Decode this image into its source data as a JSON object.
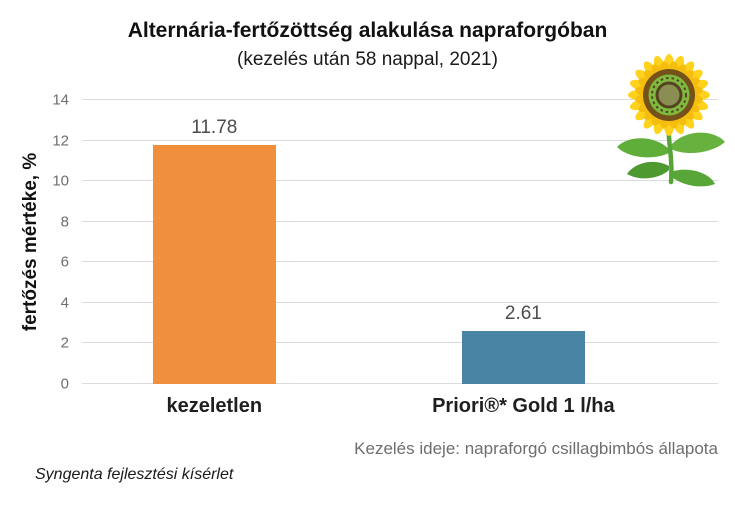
{
  "chart_data": {
    "type": "bar",
    "title": "Alternária-fertőzöttség alakulása napraforgóban",
    "subtitle": "(kezelés után 58 nappal, 2021)",
    "ylabel": "fertőzés mértéke, %",
    "categories": [
      "kezeletlen",
      "Priori®* Gold 1 l/ha"
    ],
    "values": [
      11.78,
      2.61
    ],
    "value_labels": [
      "11.78",
      "2.61"
    ],
    "bar_colors": [
      "#F0903C",
      "#4A84A4"
    ],
    "ylim": [
      0,
      14
    ],
    "yticks": [
      0,
      2,
      4,
      6,
      8,
      10,
      12,
      14
    ],
    "grid": true,
    "legend": "none",
    "annotation": "Kezelés ideje: napraforgó csillagbimbós állapota",
    "footer": "Syngenta fejlesztési kísérlet",
    "decoration": "sunflower-clipart",
    "layout": {
      "bar_centers_pct": [
        20.8,
        69.4
      ],
      "bar_width_pct": 19.3,
      "gridline_color": "#dbdbdb",
      "tick_color": "#6e6e6e",
      "value_label_color": "#4d4d4d"
    }
  }
}
